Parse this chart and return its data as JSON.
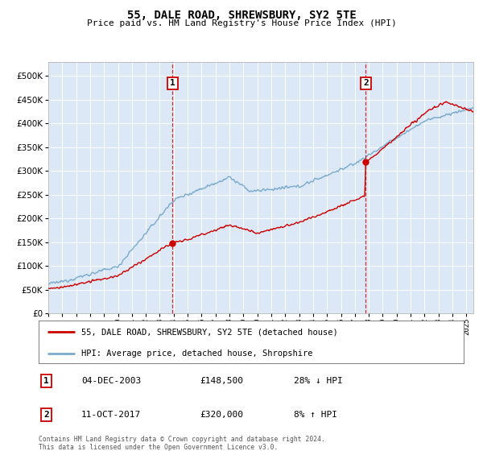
{
  "title": "55, DALE ROAD, SHREWSBURY, SY2 5TE",
  "subtitle": "Price paid vs. HM Land Registry's House Price Index (HPI)",
  "ytick_values": [
    0,
    50000,
    100000,
    150000,
    200000,
    250000,
    300000,
    350000,
    400000,
    450000,
    500000
  ],
  "ylim": [
    0,
    530000
  ],
  "xlim_start": 1995.0,
  "xlim_end": 2025.5,
  "bg_color": "#dce8f5",
  "red_color": "#cc0000",
  "blue_color": "#7aabcf",
  "sale1_x": 2003.92,
  "sale1_y": 148500,
  "sale2_x": 2017.78,
  "sale2_y": 320000,
  "legend_label_red": "55, DALE ROAD, SHREWSBURY, SY2 5TE (detached house)",
  "legend_label_blue": "HPI: Average price, detached house, Shropshire",
  "annotation1_label": "1",
  "annotation1_date": "04-DEC-2003",
  "annotation1_price": "£148,500",
  "annotation1_hpi": "28% ↓ HPI",
  "annotation2_label": "2",
  "annotation2_date": "11-OCT-2017",
  "annotation2_price": "£320,000",
  "annotation2_hpi": "8% ↑ HPI",
  "footer": "Contains HM Land Registry data © Crown copyright and database right 2024.\nThis data is licensed under the Open Government Licence v3.0."
}
